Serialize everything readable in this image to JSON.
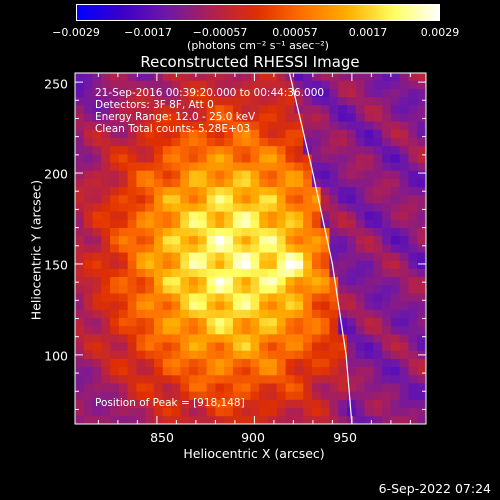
{
  "colorbar": {
    "tick_labels": [
      "−0.0029",
      "−0.0017",
      "−0.00057",
      "0.00057",
      "0.0017",
      "0.0029"
    ],
    "units": "(photons cm⁻² s⁻¹ asec⁻²)",
    "colors": [
      "#0000ff",
      "#3c00c8",
      "#6e18a8",
      "#b02050",
      "#e03000",
      "#ff7000",
      "#ffb000",
      "#ffff60",
      "#ffffff"
    ]
  },
  "chart_data": {
    "type": "heatmap",
    "title": "Reconstructed RHESSI Image",
    "xlabel": "Heliocentric X (arcsec)",
    "ylabel": "Heliocentric Y (arcsec)",
    "xlim": [
      808,
      988
    ],
    "ylim": [
      62,
      255
    ],
    "x_ticks": [
      850,
      900,
      950
    ],
    "y_ticks": [
      100,
      150,
      200,
      250
    ],
    "value_range": [
      -0.0029,
      0.0029
    ],
    "peak": [
      918,
      148
    ],
    "limb_arc": [
      [
        918,
        255
      ],
      [
        930,
        200
      ],
      [
        940,
        150
      ],
      [
        947,
        100
      ],
      [
        950,
        62
      ]
    ],
    "annotations": [
      "21-Sep-2016 00:39:20.000 to 00:44:36.000",
      "Detectors: 3F 8F, Att 0",
      "Energy Range: 12.0 - 25.0 keV",
      "Clean     Total counts: 5.28E+03",
      "Position of Peak = [918,148]"
    ]
  },
  "footer": {
    "date": "6-Sep-2022 07:24"
  }
}
